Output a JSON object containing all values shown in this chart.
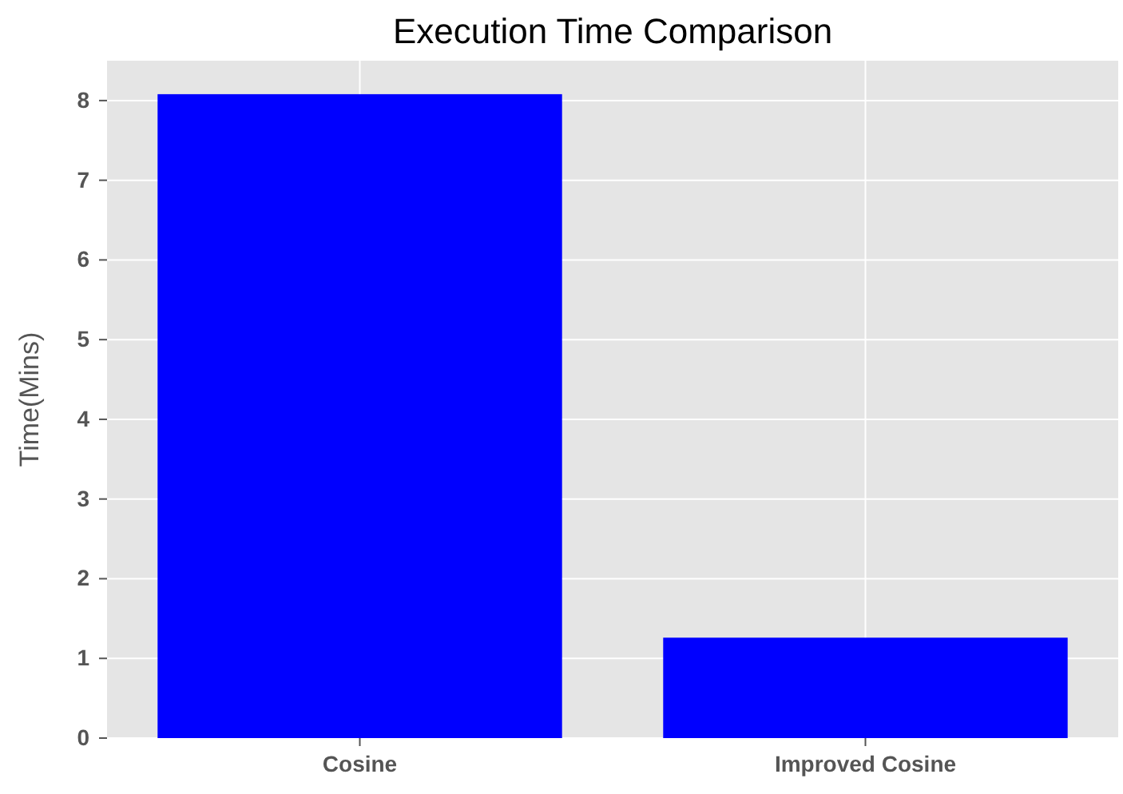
{
  "chart_data": {
    "type": "bar",
    "title": "Execution Time Comparison",
    "ylabel": "Time(Mins)",
    "categories": [
      "Cosine",
      "Improved Cosine"
    ],
    "values": [
      8.08,
      1.26
    ],
    "color": "#0000ff",
    "ylim": [
      0,
      8.5
    ],
    "yticks": [
      0,
      1,
      2,
      3,
      4,
      5,
      6,
      7,
      8
    ],
    "grid": true
  }
}
